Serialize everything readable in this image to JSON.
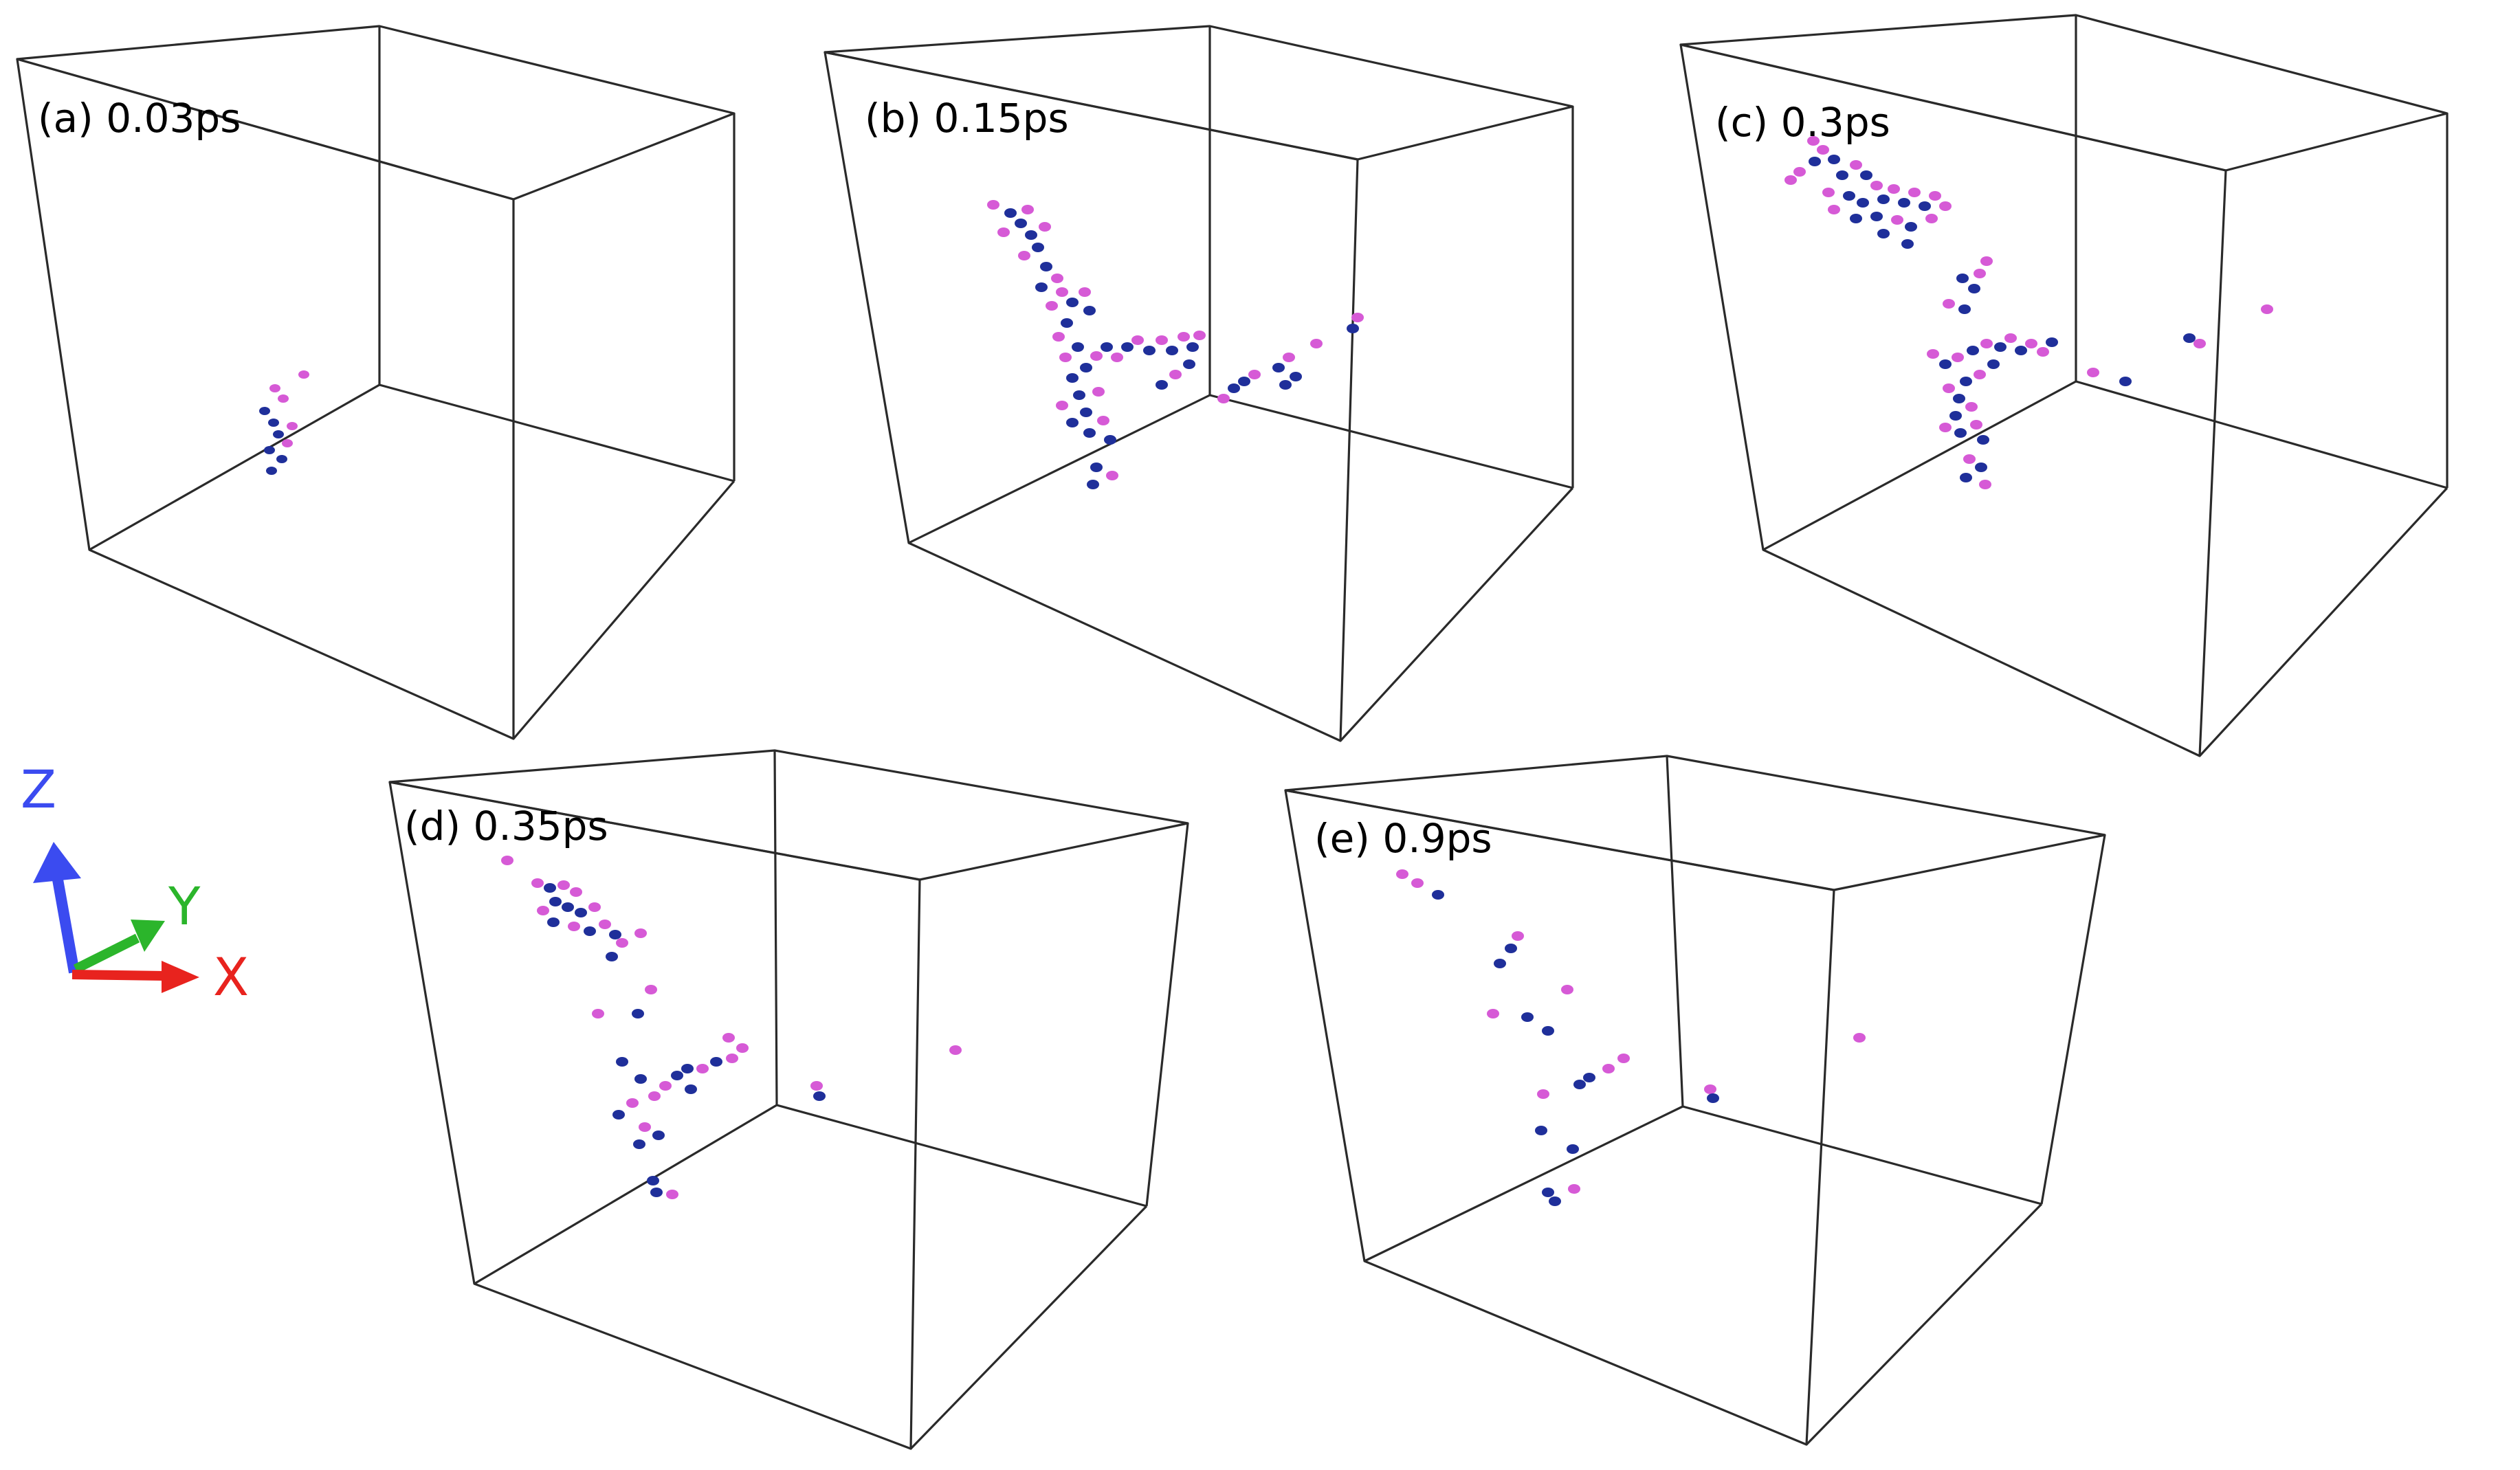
{
  "figure": {
    "panels": [
      {
        "label": "(a) 0.03ps",
        "time_ps": 0.03
      },
      {
        "label": "(b) 0.15ps",
        "time_ps": 0.15
      },
      {
        "label": "(c) 0.3ps",
        "time_ps": 0.3
      },
      {
        "label": "(d) 0.35ps",
        "time_ps": 0.35
      },
      {
        "label": "(e) 0.9ps",
        "time_ps": 0.9
      }
    ],
    "axes": {
      "z": {
        "label": "Z",
        "color": "#3B4BF0"
      },
      "y": {
        "label": "Y",
        "color": "#2BB52B"
      },
      "x": {
        "label": "X",
        "color": "#E8231E"
      }
    },
    "atom_colors": {
      "blue": "#1F2F9A",
      "magenta": "#D65AD6"
    }
  }
}
